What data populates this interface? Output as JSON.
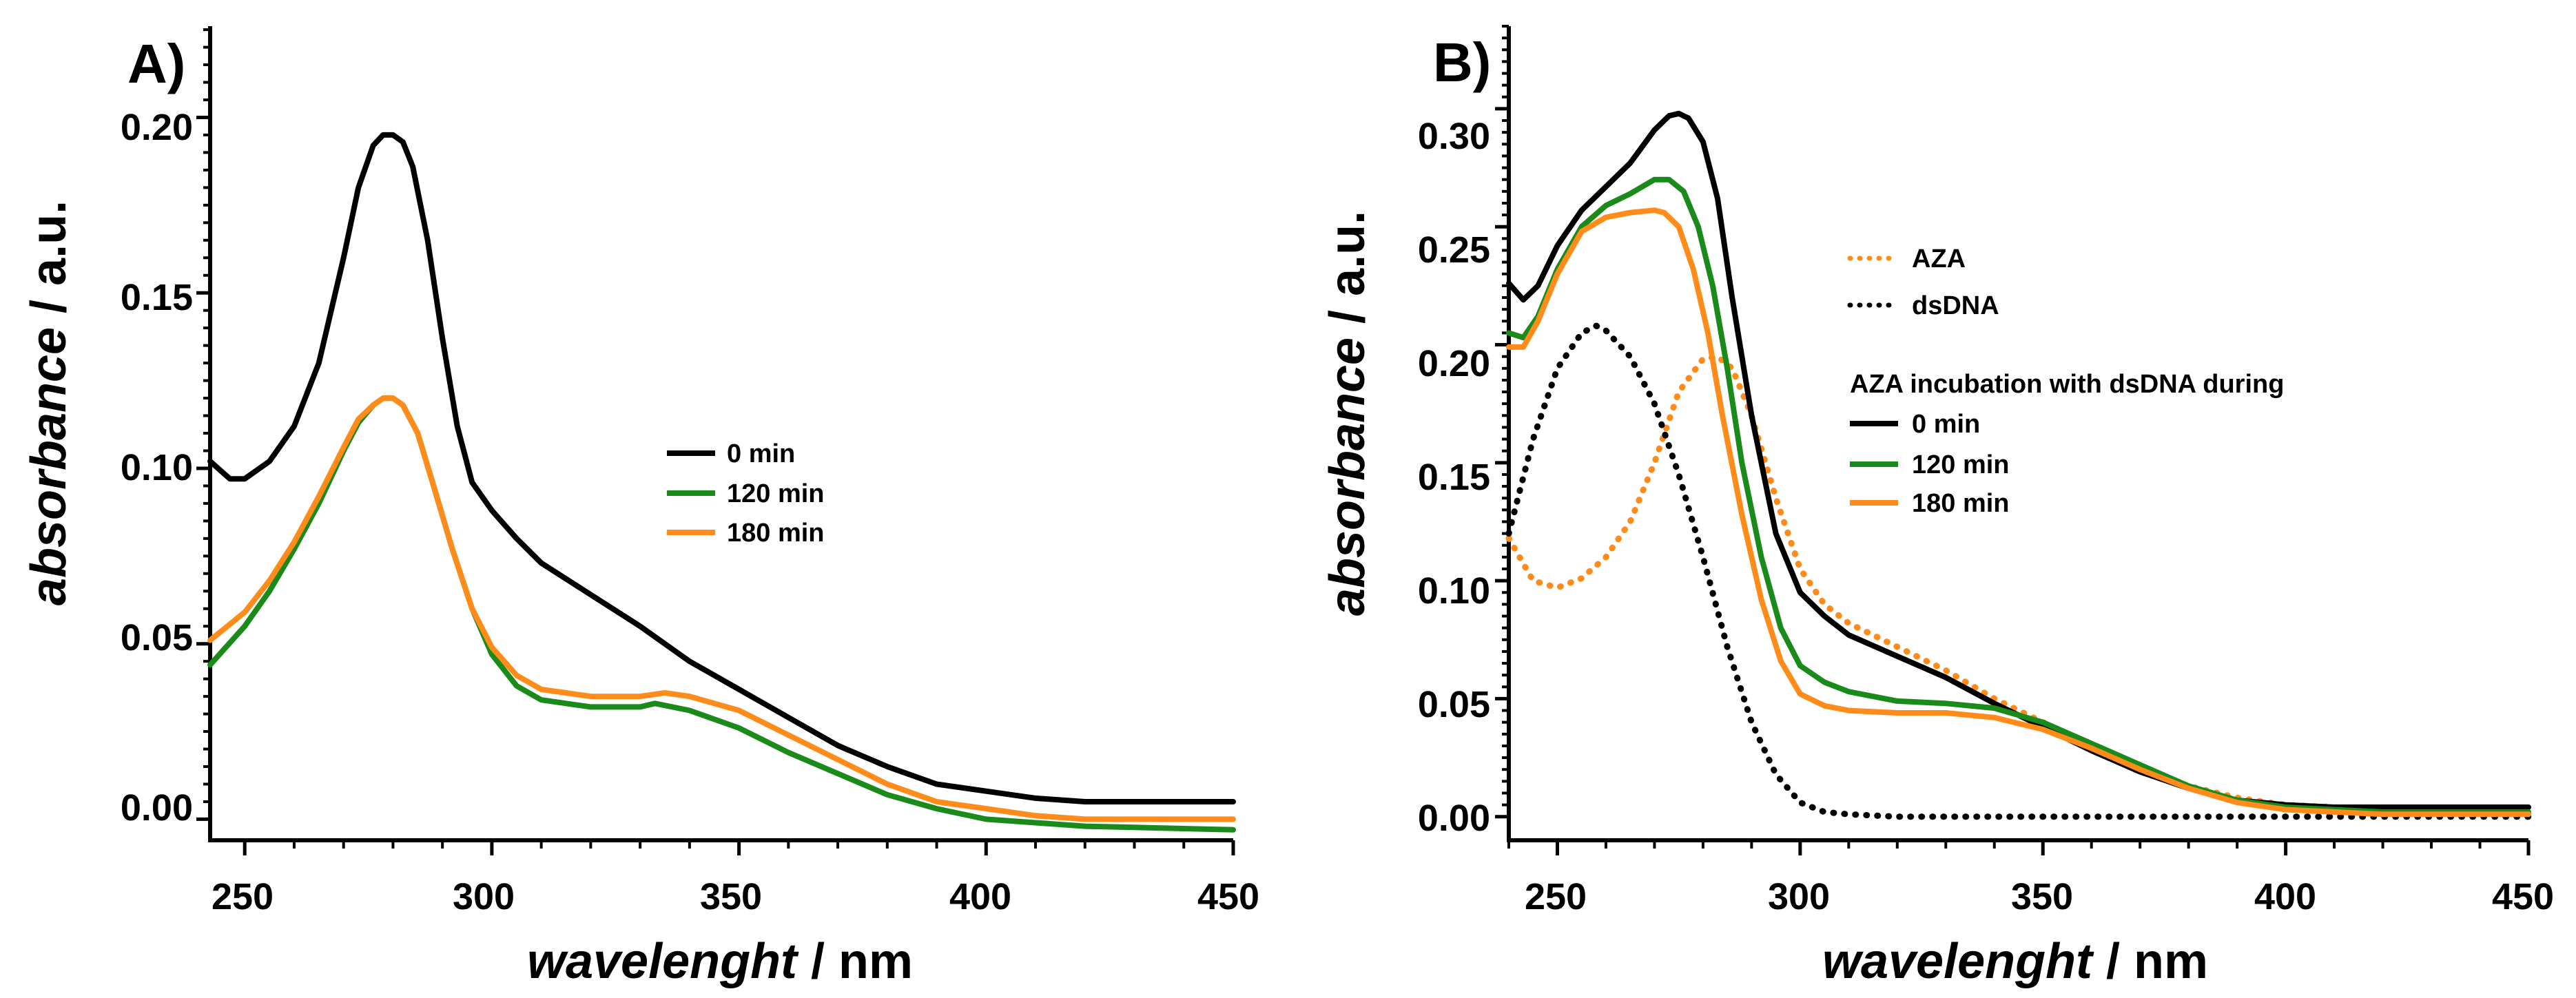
{
  "chart_data": [
    {
      "type": "line",
      "panel_label": "A)",
      "xlabel_italic": "wavelenght",
      "xlabel_unit": " / nm",
      "ylabel_italic": "absorbance",
      "ylabel_unit": " / a.u.",
      "xlim": [
        243,
        450
      ],
      "ylim": [
        -0.006,
        0.226
      ],
      "xticks": [
        "250",
        "300",
        "350",
        "400",
        "450"
      ],
      "yticks": [
        "0.00",
        "0.05",
        "0.10",
        "0.15",
        "0.20"
      ],
      "legend": {
        "position": "center-right",
        "header": ""
      },
      "series": [
        {
          "name": "0 min",
          "color": "#000000",
          "dash": "solid",
          "x": [
            243,
            247,
            250,
            255,
            260,
            265,
            270,
            273,
            276,
            278,
            280,
            282,
            284,
            287,
            290,
            293,
            296,
            300,
            305,
            310,
            320,
            330,
            340,
            350,
            360,
            370,
            380,
            390,
            400,
            410,
            420,
            450
          ],
          "y": [
            0.102,
            0.097,
            0.097,
            0.102,
            0.112,
            0.13,
            0.16,
            0.18,
            0.192,
            0.195,
            0.195,
            0.193,
            0.186,
            0.165,
            0.137,
            0.112,
            0.096,
            0.088,
            0.08,
            0.073,
            0.064,
            0.055,
            0.045,
            0.037,
            0.029,
            0.021,
            0.015,
            0.01,
            0.008,
            0.006,
            0.005,
            0.005
          ]
        },
        {
          "name": "120 min",
          "color": "#1a8a1a",
          "dash": "solid",
          "x": [
            243,
            250,
            255,
            260,
            265,
            270,
            273,
            276,
            278,
            280,
            282,
            285,
            288,
            292,
            296,
            300,
            305,
            310,
            315,
            320,
            325,
            330,
            333,
            340,
            350,
            360,
            370,
            380,
            390,
            400,
            410,
            420,
            450
          ],
          "y": [
            0.044,
            0.055,
            0.065,
            0.077,
            0.09,
            0.105,
            0.113,
            0.118,
            0.12,
            0.12,
            0.118,
            0.11,
            0.096,
            0.077,
            0.06,
            0.047,
            0.038,
            0.034,
            0.033,
            0.032,
            0.032,
            0.032,
            0.033,
            0.031,
            0.026,
            0.019,
            0.013,
            0.007,
            0.003,
            0.0,
            -0.001,
            -0.002,
            -0.003
          ]
        },
        {
          "name": "180 min",
          "color": "#ff8c1a",
          "dash": "solid",
          "x": [
            243,
            250,
            255,
            260,
            265,
            270,
            273,
            276,
            278,
            280,
            282,
            285,
            288,
            292,
            296,
            300,
            305,
            310,
            315,
            320,
            325,
            330,
            335,
            340,
            350,
            360,
            370,
            380,
            390,
            400,
            410,
            420,
            450
          ],
          "y": [
            0.051,
            0.059,
            0.068,
            0.079,
            0.092,
            0.106,
            0.114,
            0.118,
            0.12,
            0.12,
            0.118,
            0.11,
            0.096,
            0.077,
            0.06,
            0.049,
            0.041,
            0.037,
            0.036,
            0.035,
            0.035,
            0.035,
            0.036,
            0.035,
            0.031,
            0.024,
            0.017,
            0.01,
            0.005,
            0.003,
            0.001,
            0.0,
            0.0
          ]
        }
      ]
    },
    {
      "type": "line",
      "panel_label": "B)",
      "xlabel_italic": "wavelenght",
      "xlabel_unit": " / nm",
      "ylabel_italic": "absorbance",
      "ylabel_unit": " / a.u.",
      "xlim": [
        240,
        450
      ],
      "ylim": [
        -0.01,
        0.335
      ],
      "xticks": [
        "250",
        "300",
        "350",
        "400",
        "450"
      ],
      "yticks": [
        "0.00",
        "0.05",
        "0.10",
        "0.15",
        "0.20",
        "0.25",
        "0.30"
      ],
      "legend": {
        "position": "center",
        "header": "AZA incubation with dsDNA during"
      },
      "series": [
        {
          "name": "AZA",
          "group": "reference",
          "color": "#ff8c1a",
          "dash": "dotted",
          "x": [
            240,
            245,
            250,
            255,
            260,
            265,
            270,
            275,
            280,
            283,
            286,
            290,
            295,
            300,
            305,
            310,
            320,
            330,
            340,
            350,
            360,
            370,
            380,
            390,
            400,
            410,
            420,
            450
          ],
          "y": [
            0.118,
            0.1,
            0.097,
            0.101,
            0.11,
            0.125,
            0.15,
            0.18,
            0.194,
            0.195,
            0.19,
            0.17,
            0.135,
            0.105,
            0.09,
            0.082,
            0.072,
            0.062,
            0.05,
            0.04,
            0.03,
            0.02,
            0.013,
            0.008,
            0.005,
            0.004,
            0.003,
            0.003
          ]
        },
        {
          "name": "dsDNA",
          "group": "reference",
          "color": "#000000",
          "dash": "dotted",
          "x": [
            240,
            245,
            250,
            255,
            258,
            260,
            265,
            270,
            275,
            280,
            285,
            290,
            295,
            300,
            305,
            310,
            320,
            350,
            400,
            450
          ],
          "y": [
            0.12,
            0.16,
            0.19,
            0.205,
            0.208,
            0.206,
            0.195,
            0.175,
            0.145,
            0.11,
            0.072,
            0.04,
            0.018,
            0.006,
            0.002,
            0.001,
            0.0,
            0.0,
            0.0,
            0.0
          ]
        },
        {
          "name": "0 min",
          "group": "incubation",
          "color": "#000000",
          "dash": "solid",
          "x": [
            240,
            243,
            246,
            250,
            255,
            260,
            265,
            270,
            273,
            275,
            277,
            280,
            283,
            286,
            290,
            295,
            300,
            305,
            310,
            320,
            330,
            340,
            350,
            360,
            370,
            380,
            390,
            400,
            410,
            420,
            450
          ],
          "y": [
            0.226,
            0.219,
            0.225,
            0.242,
            0.257,
            0.267,
            0.277,
            0.291,
            0.297,
            0.298,
            0.296,
            0.286,
            0.262,
            0.22,
            0.17,
            0.12,
            0.095,
            0.085,
            0.077,
            0.068,
            0.059,
            0.048,
            0.038,
            0.028,
            0.019,
            0.012,
            0.007,
            0.005,
            0.004,
            0.004,
            0.004
          ]
        },
        {
          "name": "120 min",
          "group": "incubation",
          "color": "#1a8a1a",
          "dash": "solid",
          "x": [
            240,
            243,
            246,
            250,
            255,
            260,
            265,
            270,
            273,
            276,
            279,
            282,
            285,
            288,
            292,
            296,
            300,
            305,
            310,
            320,
            330,
            340,
            350,
            360,
            370,
            380,
            390,
            400,
            410,
            420,
            450
          ],
          "y": [
            0.205,
            0.203,
            0.212,
            0.232,
            0.25,
            0.259,
            0.264,
            0.27,
            0.27,
            0.265,
            0.25,
            0.225,
            0.19,
            0.15,
            0.11,
            0.08,
            0.064,
            0.057,
            0.053,
            0.049,
            0.048,
            0.046,
            0.04,
            0.031,
            0.022,
            0.013,
            0.007,
            0.004,
            0.003,
            0.002,
            0.002
          ]
        },
        {
          "name": "180 min",
          "group": "incubation",
          "color": "#ff8c1a",
          "dash": "solid",
          "x": [
            240,
            243,
            246,
            250,
            255,
            260,
            265,
            270,
            272,
            275,
            278,
            281,
            284,
            288,
            292,
            296,
            300,
            305,
            310,
            320,
            330,
            340,
            350,
            360,
            370,
            380,
            390,
            400,
            410,
            420,
            450
          ],
          "y": [
            0.199,
            0.199,
            0.21,
            0.23,
            0.248,
            0.254,
            0.256,
            0.257,
            0.256,
            0.25,
            0.232,
            0.205,
            0.17,
            0.128,
            0.092,
            0.066,
            0.052,
            0.047,
            0.045,
            0.044,
            0.044,
            0.042,
            0.037,
            0.029,
            0.02,
            0.012,
            0.006,
            0.003,
            0.002,
            0.001,
            0.001
          ]
        }
      ]
    }
  ]
}
